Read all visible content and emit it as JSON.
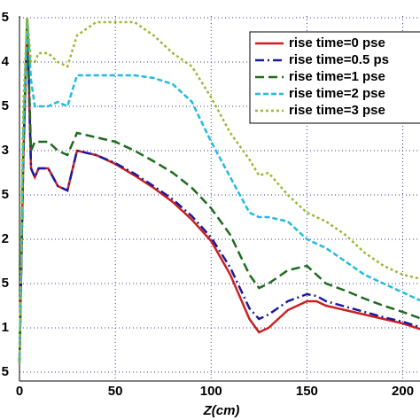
{
  "chart_data": {
    "type": "line",
    "x_label": "Z(cm)",
    "x": [
      0,
      2,
      4,
      6,
      8,
      10,
      15,
      20,
      25,
      30,
      40,
      50,
      60,
      70,
      80,
      90,
      100,
      110,
      120,
      125,
      130,
      140,
      150,
      155,
      160,
      170,
      180,
      190,
      200,
      210
    ],
    "series": [
      {
        "name": "rise time=0 pse",
        "color": "#cc2020",
        "dash": "",
        "values": [
          0.6,
          2.9,
          4.5,
          2.8,
          2.7,
          2.8,
          2.8,
          2.6,
          2.55,
          3.0,
          2.95,
          2.85,
          2.72,
          2.58,
          2.42,
          2.22,
          1.98,
          1.6,
          1.1,
          0.95,
          1.0,
          1.2,
          1.3,
          1.3,
          1.25,
          1.2,
          1.15,
          1.1,
          1.05,
          0.98
        ]
      },
      {
        "name": "rise time=0.5 ps",
        "color": "#1a1aa0",
        "dash": "10 4 2 4",
        "values": [
          0.6,
          2.9,
          4.5,
          2.8,
          2.7,
          2.8,
          2.8,
          2.6,
          2.55,
          3.0,
          2.95,
          2.86,
          2.74,
          2.6,
          2.45,
          2.26,
          2.02,
          1.68,
          1.22,
          1.1,
          1.15,
          1.3,
          1.38,
          1.36,
          1.3,
          1.24,
          1.18,
          1.12,
          1.07,
          1.0
        ]
      },
      {
        "name": "rise time=1 pse",
        "color": "#1e6b1e",
        "dash": "10 5",
        "values": [
          0.6,
          3.0,
          4.5,
          3.0,
          3.1,
          3.1,
          3.1,
          3.0,
          2.95,
          3.2,
          3.15,
          3.1,
          3.0,
          2.88,
          2.75,
          2.58,
          2.35,
          2.05,
          1.6,
          1.45,
          1.5,
          1.65,
          1.7,
          1.6,
          1.5,
          1.42,
          1.33,
          1.25,
          1.18,
          1.1
        ]
      },
      {
        "name": "rise time=2 pse",
        "color": "#22bbdd",
        "dash": "6 3",
        "values": [
          0.6,
          3.2,
          4.5,
          3.8,
          3.5,
          3.5,
          3.5,
          3.55,
          3.5,
          3.85,
          3.85,
          3.85,
          3.85,
          3.82,
          3.75,
          3.55,
          3.1,
          2.7,
          2.3,
          2.25,
          2.25,
          2.2,
          2.0,
          1.95,
          1.9,
          1.75,
          1.6,
          1.5,
          1.4,
          1.3
        ]
      },
      {
        "name": "rise time=3 pse",
        "color": "#99bb33",
        "dash": "3 3",
        "values": [
          0.6,
          3.5,
          4.5,
          4.0,
          4.0,
          4.1,
          4.1,
          4.0,
          3.95,
          4.3,
          4.45,
          4.45,
          4.45,
          4.3,
          4.1,
          3.95,
          3.6,
          3.2,
          2.9,
          2.72,
          2.75,
          2.5,
          2.3,
          2.25,
          2.2,
          2.05,
          1.85,
          1.7,
          1.6,
          1.55
        ]
      }
    ],
    "xlim": [
      0,
      209
    ],
    "xticks": [
      0,
      50,
      100,
      150,
      200
    ],
    "ylim": [
      0.4,
      4.52
    ],
    "yticks": [
      {
        "value": 0.5,
        "label": "5"
      },
      1,
      {
        "value": 1.5,
        "label": "5"
      },
      2,
      {
        "value": 2.5,
        "label": "5"
      },
      3,
      {
        "value": 3.5,
        "label": "5"
      },
      4,
      {
        "value": 4.5,
        "label": "5"
      }
    ],
    "grid": true,
    "legend": "top-right"
  }
}
